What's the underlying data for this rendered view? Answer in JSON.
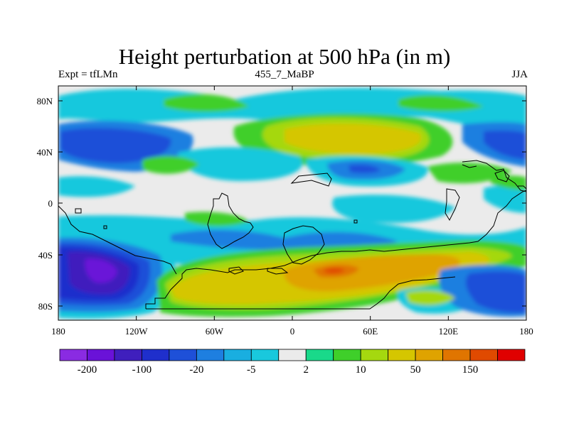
{
  "title": "Height perturbation at 500 hPa (in m)",
  "subtitle_left": "Expt = tfLMn",
  "subtitle_center": "455_7_MaBP",
  "subtitle_right": "JJA",
  "y_ticks": [
    "80N",
    "40N",
    "0",
    "40S",
    "80S"
  ],
  "x_ticks": [
    "180",
    "120W",
    "60W",
    "0",
    "60E",
    "120E",
    "180"
  ],
  "colorbar": {
    "colors": [
      "#8a2be2",
      "#6a12d8",
      "#3f1fbd",
      "#1f2fcc",
      "#1e50d8",
      "#1e7fe0",
      "#19aee0",
      "#19c8dd",
      "#ebebeb",
      "#19d98a",
      "#3fcf2a",
      "#a5d80f",
      "#d5c600",
      "#dfa300",
      "#e07500",
      "#e04a00",
      "#e00000"
    ],
    "labels": [
      "-200",
      "-100",
      "-20",
      "-5",
      "2",
      "10",
      "50",
      "150"
    ]
  }
}
